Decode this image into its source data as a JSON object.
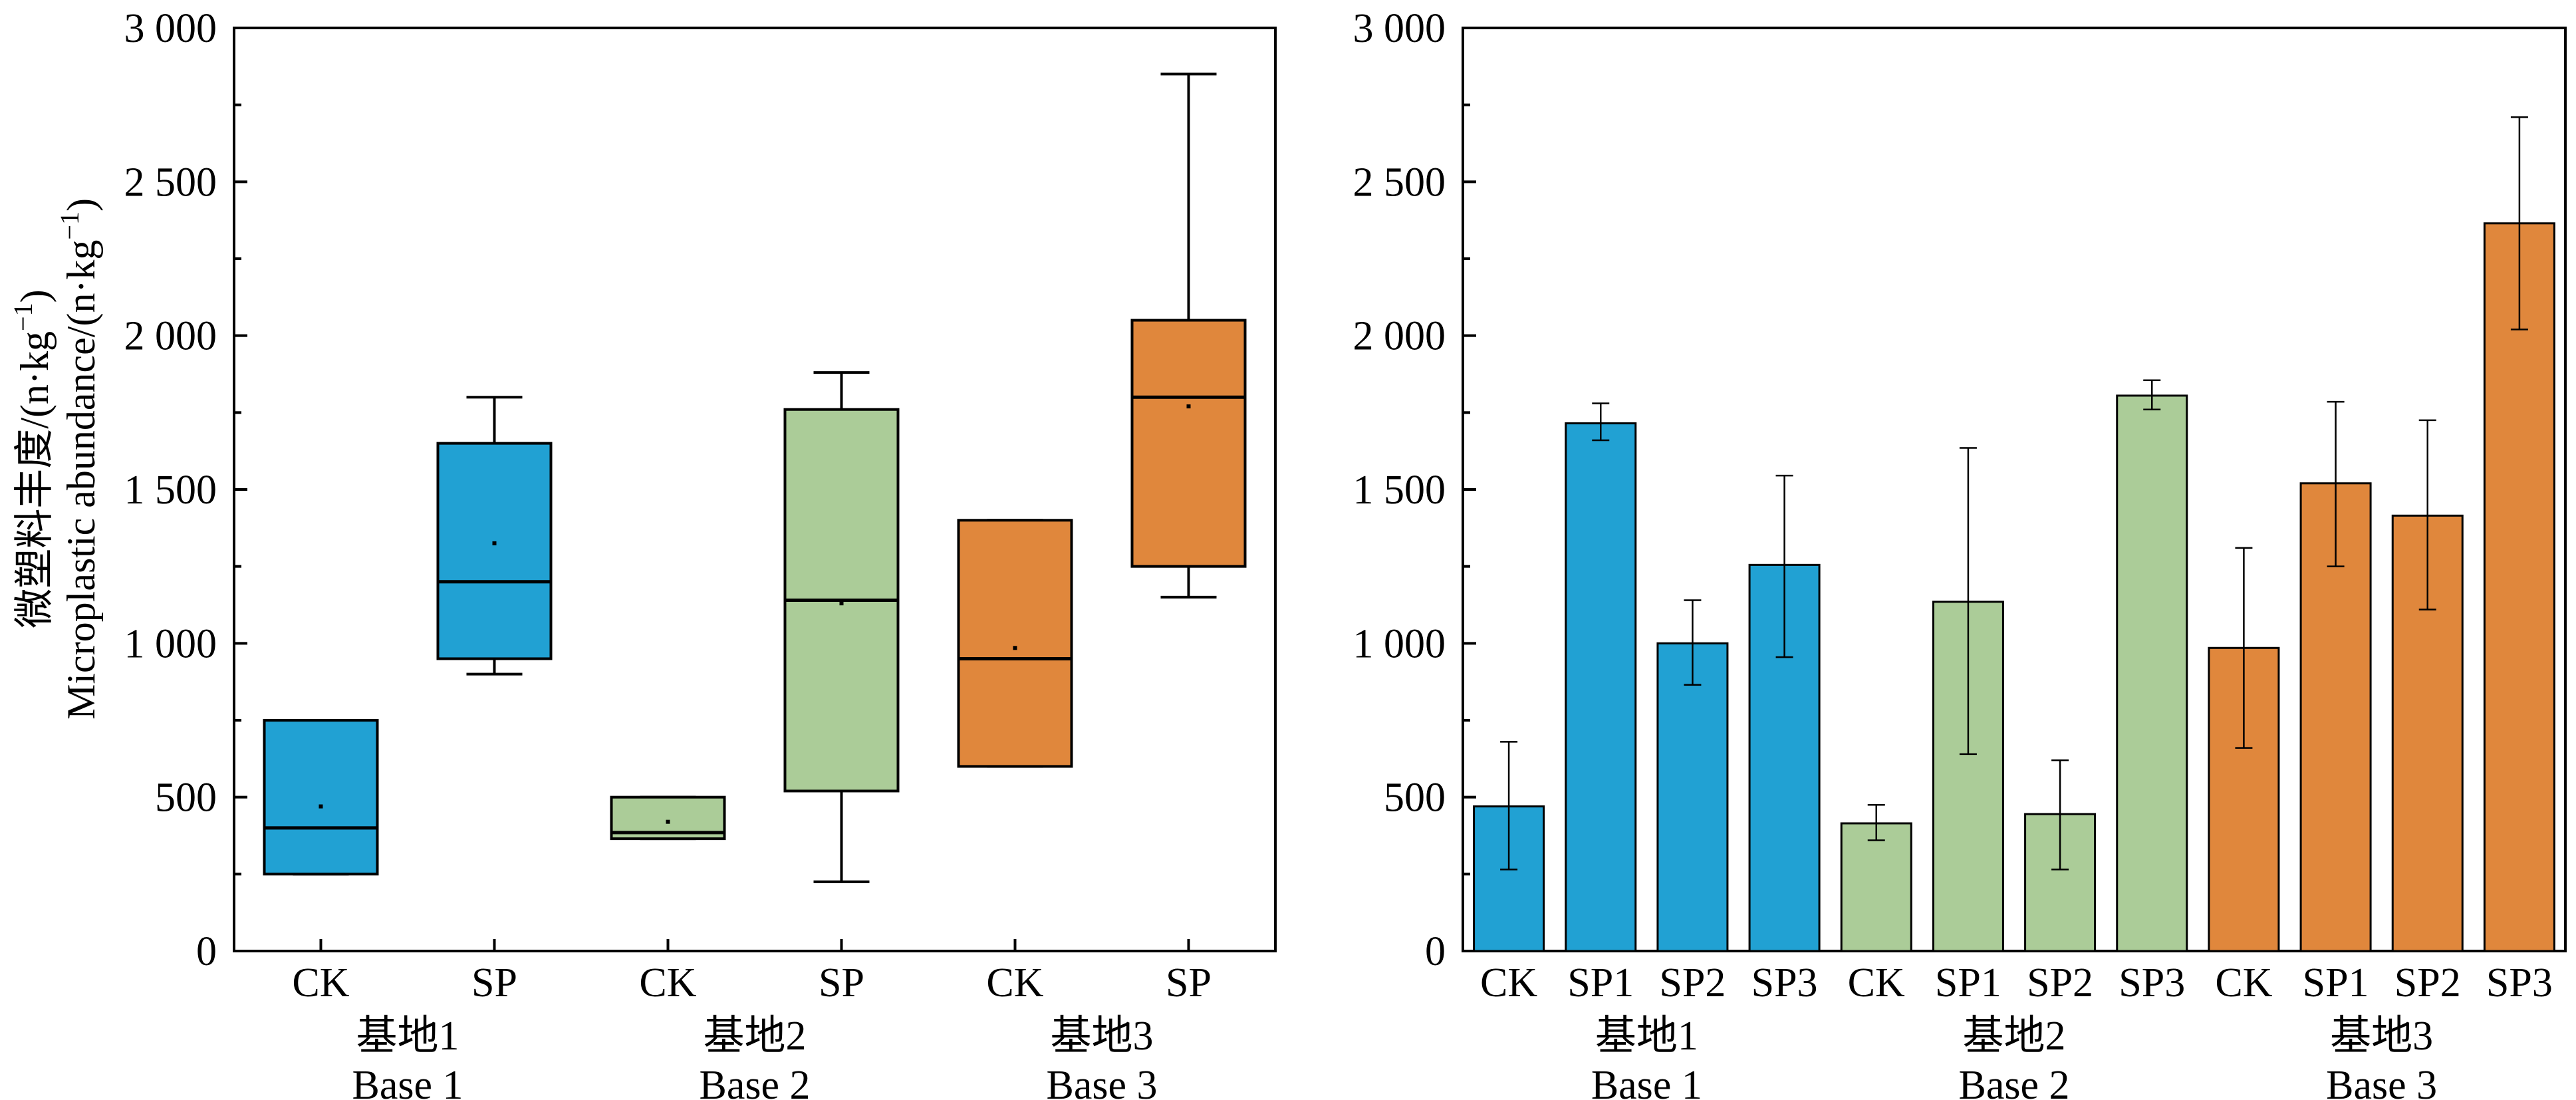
{
  "y_axis_label": {
    "line1_prefix": "微塑料丰度/(n·kg",
    "line2_prefix": "Microplastic abundance/(n·kg",
    "superscript": "−1",
    "suffix": ")"
  },
  "colors": {
    "blue": "#21a1d3",
    "green": "#abcc98",
    "orange": "#e0873c",
    "line": "#000000",
    "background": "#ffffff"
  },
  "chart_data": [
    {
      "type": "box",
      "ylim": [
        0,
        3000
      ],
      "yticks": [
        0,
        500,
        1000,
        1500,
        2000,
        2500,
        3000
      ],
      "ytick_labels": [
        "0",
        "500",
        "1 000",
        "1 500",
        "2 000",
        "2 500",
        "3 000"
      ],
      "groups": [
        {
          "zh": "基地1",
          "en": "Base 1",
          "color": "blue"
        },
        {
          "zh": "基地2",
          "en": "Base 2",
          "color": "green"
        },
        {
          "zh": "基地3",
          "en": "Base 3",
          "color": "orange"
        }
      ],
      "boxes": [
        {
          "label": "CK",
          "group": 0,
          "min": 250,
          "q1": 250,
          "median": 400,
          "q3": 750,
          "max": 750,
          "mean": 470
        },
        {
          "label": "SP",
          "group": 0,
          "min": 900,
          "q1": 950,
          "median": 1200,
          "q3": 1650,
          "max": 1800,
          "mean": 1325
        },
        {
          "label": "CK",
          "group": 1,
          "min": 365,
          "q1": 365,
          "median": 385,
          "q3": 500,
          "max": 500,
          "mean": 420
        },
        {
          "label": "SP",
          "group": 1,
          "min": 225,
          "q1": 520,
          "median": 1140,
          "q3": 1760,
          "max": 1880,
          "mean": 1130
        },
        {
          "label": "CK",
          "group": 2,
          "min": 600,
          "q1": 600,
          "median": 950,
          "q3": 1400,
          "max": 1400,
          "mean": 985
        },
        {
          "label": "SP",
          "group": 2,
          "min": 1150,
          "q1": 1250,
          "median": 1800,
          "q3": 2050,
          "max": 2850,
          "mean": 1770
        }
      ]
    },
    {
      "type": "bar",
      "ylim": [
        0,
        3000
      ],
      "yticks": [
        0,
        500,
        1000,
        1500,
        2000,
        2500,
        3000
      ],
      "ytick_labels": [
        "0",
        "500",
        "1 000",
        "1 500",
        "2 000",
        "2 500",
        "3 000"
      ],
      "groups": [
        {
          "zh": "基地1",
          "en": "Base 1",
          "color": "blue"
        },
        {
          "zh": "基地2",
          "en": "Base 2",
          "color": "green"
        },
        {
          "zh": "基地3",
          "en": "Base 3",
          "color": "orange"
        }
      ],
      "bars": [
        {
          "label": "CK",
          "group": 0,
          "value": 470,
          "err_low": 265,
          "err_high": 680
        },
        {
          "label": "SP1",
          "group": 0,
          "value": 1715,
          "err_low": 1660,
          "err_high": 1780
        },
        {
          "label": "SP2",
          "group": 0,
          "value": 1000,
          "err_low": 865,
          "err_high": 1140
        },
        {
          "label": "SP3",
          "group": 0,
          "value": 1255,
          "err_low": 955,
          "err_high": 1545
        },
        {
          "label": "CK",
          "group": 1,
          "value": 415,
          "err_low": 360,
          "err_high": 475
        },
        {
          "label": "SP1",
          "group": 1,
          "value": 1135,
          "err_low": 640,
          "err_high": 1635
        },
        {
          "label": "SP2",
          "group": 1,
          "value": 445,
          "err_low": 265,
          "err_high": 620
        },
        {
          "label": "SP3",
          "group": 1,
          "value": 1805,
          "err_low": 1760,
          "err_high": 1855
        },
        {
          "label": "CK",
          "group": 2,
          "value": 985,
          "err_low": 660,
          "err_high": 1310
        },
        {
          "label": "SP1",
          "group": 2,
          "value": 1520,
          "err_low": 1250,
          "err_high": 1785
        },
        {
          "label": "SP2",
          "group": 2,
          "value": 1415,
          "err_low": 1110,
          "err_high": 1725
        },
        {
          "label": "SP3",
          "group": 2,
          "value": 2365,
          "err_low": 2020,
          "err_high": 2710
        }
      ]
    }
  ]
}
